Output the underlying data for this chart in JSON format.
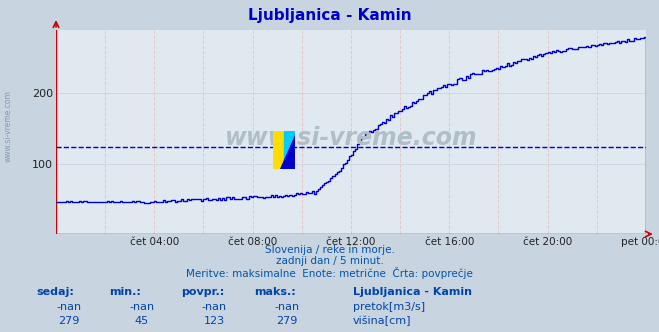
{
  "title": "Ljubljanica - Kamin",
  "title_color": "#0000cc",
  "bg_color": "#c8d4e0",
  "plot_bg_color": "#e0e8f0",
  "line_color": "#0000cc",
  "dashed_line_color": "#0000cc",
  "dashed_line_value": 123,
  "x_tick_labels": [
    "čet 04:00",
    "čet 08:00",
    "čet 12:00",
    "čet 16:00",
    "čet 20:00",
    "pet 00:00"
  ],
  "x_tick_positions": [
    4,
    8,
    12,
    16,
    20,
    24
  ],
  "y_tick_labels": [
    "100",
    "200"
  ],
  "y_tick_positions": [
    100,
    200
  ],
  "ylim": [
    0,
    290
  ],
  "xlim": [
    0,
    24
  ],
  "subtitle_lines": [
    "Slovenija / reke in morje.",
    "zadnji dan / 5 minut.",
    "Meritve: maksimalne  Enote: metrične  Črta: povprečje"
  ],
  "subtitle_color": "#0055aa",
  "watermark_text": "www.si-vreme.com",
  "watermark_color": "#b0bec8",
  "legend_title": "Ljubljanica - Kamin",
  "legend_items": [
    {
      "label": "pretok[m3/s]",
      "color": "#00bb00"
    },
    {
      "label": "višina[cm]",
      "color": "#0000bb"
    }
  ],
  "table_headers": [
    "sedaj:",
    "min.:",
    "povpr.:",
    "maks.:"
  ],
  "table_row1": [
    "-nan",
    "-nan",
    "-nan",
    "-nan"
  ],
  "table_row2": [
    "279",
    "45",
    "123",
    "279"
  ],
  "table_color": "#0044aa",
  "arrow_color": "#cc0000",
  "vgrid_color": "#e8c8c8",
  "hgrid_color": "#d0d8e8"
}
